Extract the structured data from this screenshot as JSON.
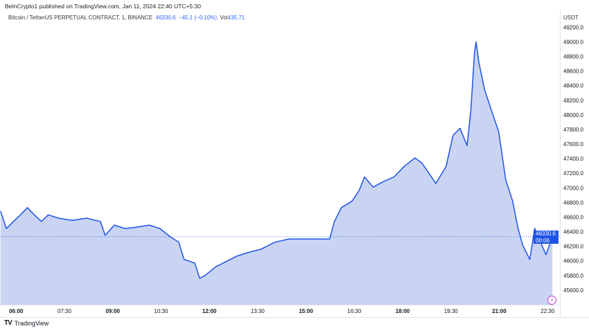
{
  "header": {
    "published": "BeInCrypto1 published on TradingView.com, Jan 11, 2024 22:40 UTC+5:30",
    "symbol": "Bitcoin / TetherUS PERPETUAL CONTRACT, 1, BINANCE",
    "last": "46330.6",
    "change": "−45.1 (−0.10%)",
    "vol_label": "Vol",
    "vol": "435.71"
  },
  "footer": {
    "brand": "TradingView"
  },
  "colors": {
    "line": "#1e53e5",
    "fill": "#c9d4f3",
    "accent": "#2962ff",
    "bolt": "#c330d1"
  },
  "price_label": {
    "price": "46330.6",
    "countdown": "00:06"
  },
  "chart_data": {
    "type": "area",
    "currency": "USDT",
    "xlim": [
      "05:30",
      "22:53"
    ],
    "ylim": [
      45400,
      49440
    ],
    "grid": false,
    "x_ticks": [
      "06:00",
      "07:30",
      "09:00",
      "10:30",
      "12:00",
      "13:30",
      "15:00",
      "16:30",
      "18:00",
      "19:30",
      "21:00",
      "22:30"
    ],
    "y_ticks": [
      "45600.0",
      "45800.0",
      "46000.0",
      "46200.0",
      "46400.0",
      "46600.0",
      "46800.0",
      "47000.0",
      "47200.0",
      "47400.0",
      "47600.0",
      "47800.0",
      "48000.0",
      "48200.0",
      "48400.0",
      "48600.0",
      "48800.0",
      "49000.0",
      "49200.0"
    ],
    "last_price": 46330.6,
    "x": [
      "05:31",
      "05:42",
      "05:55",
      "06:08",
      "06:21",
      "06:34",
      "06:47",
      "07:00",
      "07:19",
      "07:45",
      "08:11",
      "08:37",
      "08:46",
      "09:03",
      "09:23",
      "09:42",
      "10:08",
      "10:28",
      "10:47",
      "11:03",
      "11:13",
      "11:33",
      "11:42",
      "11:52",
      "12:12",
      "12:31",
      "12:51",
      "13:10",
      "13:36",
      "14:02",
      "14:28",
      "14:55",
      "15:21",
      "15:44",
      "15:53",
      "16:06",
      "16:26",
      "16:39",
      "16:49",
      "17:05",
      "17:24",
      "17:44",
      "18:03",
      "18:23",
      "18:36",
      "18:49",
      "19:02",
      "19:21",
      "19:34",
      "19:47",
      "20:00",
      "20:07",
      "20:14",
      "20:17",
      "20:22",
      "20:33",
      "20:46",
      "20:59",
      "21:12",
      "21:25",
      "21:35",
      "21:44",
      "21:57",
      "22:06",
      "22:17",
      "22:27",
      "22:39"
    ],
    "y": [
      46680,
      46443,
      46540,
      46630,
      46730,
      46630,
      46540,
      46630,
      46585,
      46555,
      46585,
      46540,
      46350,
      46490,
      46443,
      46460,
      46490,
      46443,
      46330,
      46255,
      46020,
      45970,
      45760,
      45800,
      45920,
      45990,
      46065,
      46110,
      46160,
      46255,
      46300,
      46300,
      46300,
      46300,
      46540,
      46730,
      46820,
      46965,
      47150,
      47010,
      47085,
      47150,
      47295,
      47410,
      47340,
      47200,
      47060,
      47295,
      47720,
      47815,
      47580,
      48050,
      48860,
      49000,
      48720,
      48340,
      48050,
      47770,
      47110,
      46820,
      46445,
      46210,
      46020,
      46445,
      46255,
      46085,
      46330.6
    ]
  }
}
